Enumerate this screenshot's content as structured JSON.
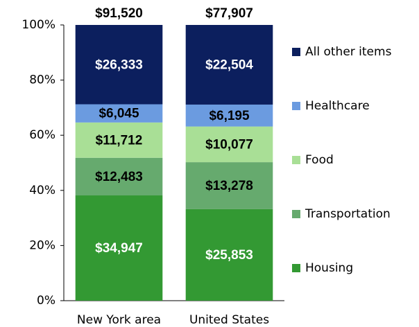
{
  "chart_data": {
    "type": "bar",
    "stacking": "percent",
    "categories": [
      "New York area",
      "United States"
    ],
    "series": [
      {
        "name": "Housing",
        "color": "#339933",
        "label_color": "#ffffff",
        "values": [
          34947,
          25853
        ],
        "value_labels": [
          "$34,947",
          "$25,853"
        ]
      },
      {
        "name": "Transportation",
        "color": "#66aa6e",
        "label_color": "#000000",
        "values": [
          12483,
          13278
        ],
        "value_labels": [
          "$12,483",
          "$13,278"
        ]
      },
      {
        "name": "Food",
        "color": "#a9df96",
        "label_color": "#000000",
        "values": [
          11712,
          10077
        ],
        "value_labels": [
          "$11,712",
          "$10,077"
        ]
      },
      {
        "name": "Healthcare",
        "color": "#6b9be0",
        "label_color": "#000000",
        "values": [
          6045,
          6195
        ],
        "value_labels": [
          "$6,045",
          "$6,195"
        ]
      },
      {
        "name": "All other items",
        "color": "#0c1f5e",
        "label_color": "#ffffff",
        "values": [
          26333,
          22504
        ],
        "value_labels": [
          "$26,333",
          "$22,504"
        ]
      }
    ],
    "totals": [
      91520,
      77907
    ],
    "total_labels": [
      "$91,520",
      "$77,907"
    ],
    "ylim": [
      0,
      100
    ],
    "yticks": [
      {
        "value": 0,
        "label": "0%"
      },
      {
        "value": 20,
        "label": "20%"
      },
      {
        "value": 40,
        "label": "40%"
      },
      {
        "value": 60,
        "label": "60%"
      },
      {
        "value": 80,
        "label": "80%"
      },
      {
        "value": 100,
        "label": "100%"
      }
    ],
    "grid": false,
    "legend": "right"
  }
}
